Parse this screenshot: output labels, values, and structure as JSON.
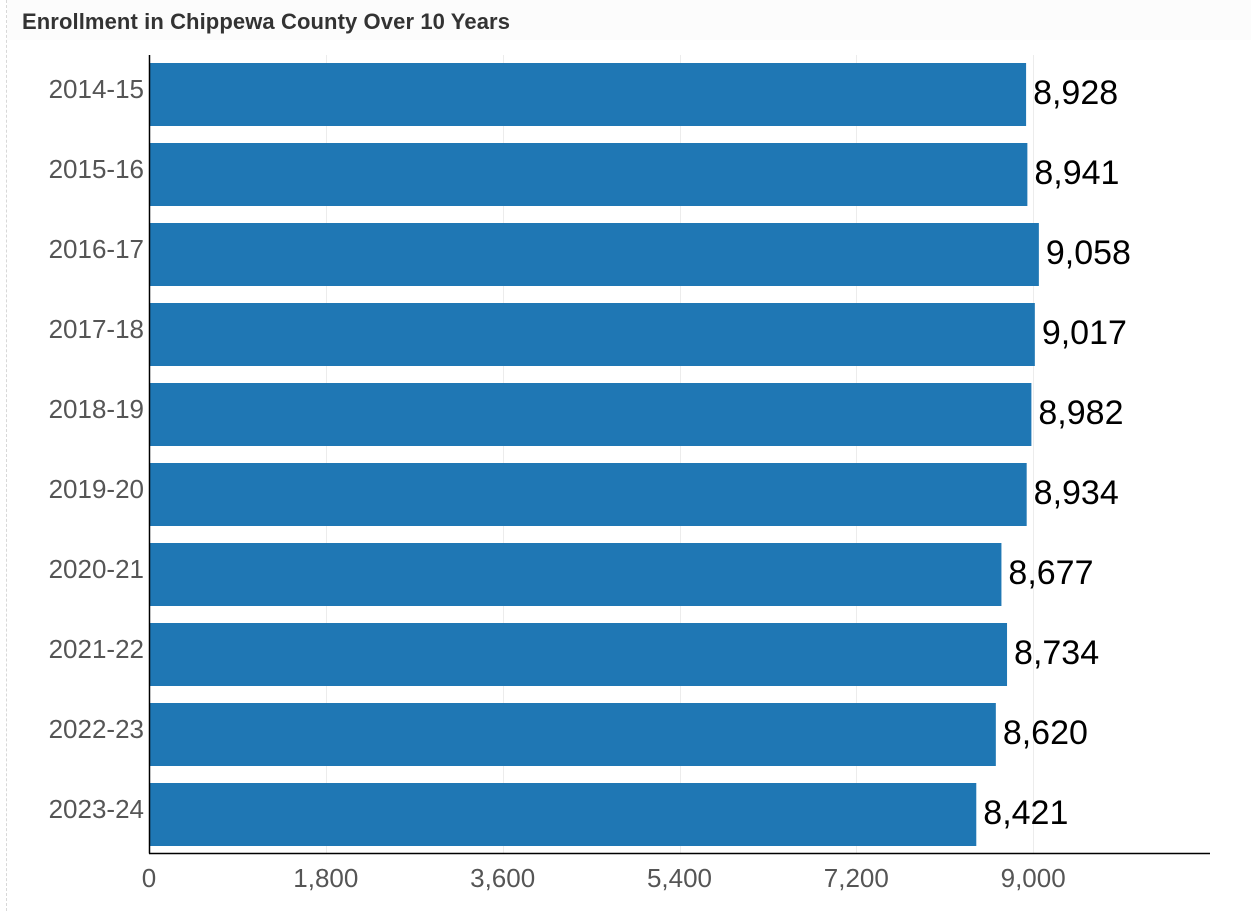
{
  "chart_data": {
    "type": "bar",
    "orientation": "horizontal",
    "title": "Enrollment in Chippewa County Over 10 Years",
    "categories": [
      "2014-15",
      "2015-16",
      "2016-17",
      "2017-18",
      "2018-19",
      "2019-20",
      "2020-21",
      "2021-22",
      "2022-23",
      "2023-24"
    ],
    "values": [
      8928,
      8941,
      9058,
      9017,
      8982,
      8934,
      8677,
      8734,
      8620,
      8421
    ],
    "data_labels": [
      "8,928",
      "8,941",
      "9,058",
      "9,017",
      "8,982",
      "8,934",
      "8,677",
      "8,734",
      "8,620",
      "8,421"
    ],
    "x_ticks": [
      0,
      1800,
      3600,
      5400,
      7200,
      9000
    ],
    "x_tick_labels": [
      "0",
      "1,800",
      "3,600",
      "5,400",
      "7,200",
      "9,000"
    ],
    "xlim": [
      0,
      10800
    ],
    "xlabel": "",
    "ylabel": "",
    "grid": "vertical",
    "bar_color": "#1f77b4",
    "grid_color": "#ececec",
    "axis_color": "#000000",
    "tick_label_color": "#555555",
    "data_label_color": "#000000",
    "title_color": "#333333"
  }
}
